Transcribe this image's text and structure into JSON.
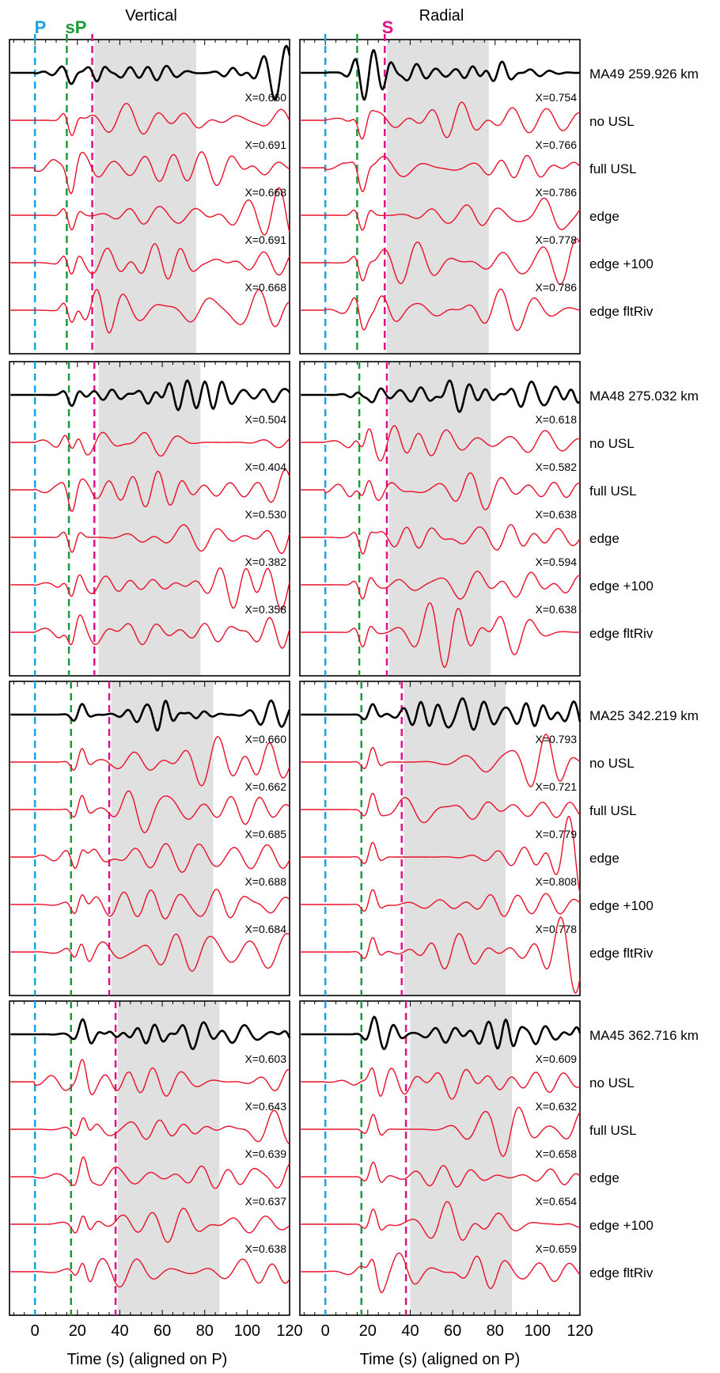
{
  "chart_data": {
    "type": "line",
    "description_columns": [
      "Vertical",
      "Radial"
    ],
    "x_axis": {
      "label": "Time (s) (aligned on P)",
      "range": [
        -12,
        120
      ],
      "ticks": [
        0,
        20,
        40,
        60,
        80,
        100,
        120
      ],
      "minor_step": 5
    },
    "phases": {
      "P": {
        "label": "P",
        "color": "#1aa3e0"
      },
      "sP": {
        "label": "sP",
        "color": "#1a9c3c"
      },
      "S": {
        "label": "S",
        "color": "#e0128a"
      }
    },
    "trace_labels": [
      "no USL",
      "full USL",
      "edge",
      "edge +100",
      "edge fltRiv"
    ],
    "colors": {
      "observed": "#000000",
      "synthetic": "#e8102a",
      "window": "#e0e0e0"
    },
    "stations": [
      {
        "name": "MA49 259.926 km",
        "sP_time": 15,
        "vertical": {
          "marker_time": 27,
          "window": [
            28,
            76
          ],
          "fits": [
            "X=0.660",
            "X=0.691",
            "X=0.668",
            "X=0.691",
            "X=0.668"
          ]
        },
        "radial": {
          "marker_time": 28,
          "window": [
            29,
            77
          ],
          "fits": [
            "X=0.754",
            "X=0.766",
            "X=0.786",
            "X=0.778",
            "X=0.786"
          ]
        }
      },
      {
        "name": "MA48 275.032 km",
        "sP_time": 16,
        "vertical": {
          "marker_time": 28,
          "window": [
            30,
            78
          ],
          "fits": [
            "X=0.504",
            "X=0.404",
            "X=0.530",
            "X=0.382",
            "X=0.358"
          ]
        },
        "radial": {
          "marker_time": 29,
          "window": [
            30,
            78
          ],
          "fits": [
            "X=0.618",
            "X=0.582",
            "X=0.638",
            "X=0.594",
            "X=0.638"
          ]
        }
      },
      {
        "name": "MA25 342.219 km",
        "sP_time": 17,
        "vertical": {
          "marker_time": 35,
          "window": [
            36,
            84
          ],
          "fits": [
            "X=0.660",
            "X=0.662",
            "X=0.685",
            "X=0.688",
            "X=0.684"
          ]
        },
        "radial": {
          "marker_time": 36,
          "window": [
            37,
            85
          ],
          "fits": [
            "X=0.793",
            "X=0.721",
            "X=0.779",
            "X=0.808",
            "X=0.778"
          ]
        }
      },
      {
        "name": "MA45 362.716 km",
        "sP_time": 17,
        "vertical": {
          "marker_time": 38,
          "window": [
            39,
            87
          ],
          "fits": [
            "X=0.603",
            "X=0.643",
            "X=0.639",
            "X=0.637",
            "X=0.638"
          ]
        },
        "radial": {
          "marker_time": 38,
          "window": [
            40,
            88
          ],
          "fits": [
            "X=0.609",
            "X=0.632",
            "X=0.658",
            "X=0.654",
            "X=0.659"
          ]
        }
      }
    ]
  }
}
